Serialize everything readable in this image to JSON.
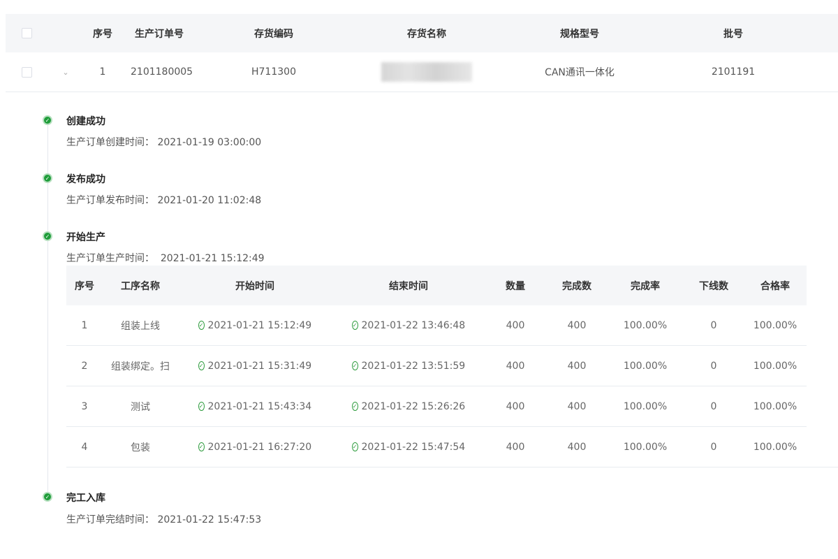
{
  "order_table": {
    "headers": [
      "序号",
      "生产订单号",
      "存货编码",
      "存货名称",
      "规格型号",
      "批号"
    ],
    "row": {
      "index": "1",
      "order_no": "2101180005",
      "inventory_code": "H711300",
      "inventory_name": "",
      "spec": "CAN通讯一体化",
      "batch": "2101191"
    }
  },
  "timeline": [
    {
      "title": "创建成功",
      "detail": "生产订单创建时间： 2021-01-19 03:00:00"
    },
    {
      "title": "发布成功",
      "detail": "生产订单发布时间： 2021-01-20 11:02:48"
    },
    {
      "title": "开始生产",
      "detail": "生产订单生产时间：  2021-01-21 15:12:49"
    },
    {
      "title": "完工入库",
      "detail": "生产订单完结时间： 2021-01-22 15:47:53"
    }
  ],
  "process_table": {
    "headers": [
      "序号",
      "工序名称",
      "开始时间",
      "结束时间",
      "数量",
      "完成数",
      "完成率",
      "下线数",
      "合格率"
    ],
    "rows": [
      [
        "1",
        "组装上线",
        "2021-01-21 15:12:49",
        "2021-01-22 13:46:48",
        "400",
        "400",
        "100.00%",
        "0",
        "100.00%"
      ],
      [
        "2",
        "组装绑定。扫",
        "2021-01-21 15:31:49",
        "2021-01-22 13:51:59",
        "400",
        "400",
        "100.00%",
        "0",
        "100.00%"
      ],
      [
        "3",
        "测试",
        "2021-01-21 15:43:34",
        "2021-01-22 15:26:26",
        "400",
        "400",
        "100.00%",
        "0",
        "100.00%"
      ],
      [
        "4",
        "包装",
        "2021-01-21 16:27:20",
        "2021-01-22 15:47:54",
        "400",
        "400",
        "100.00%",
        "0",
        "100.00%"
      ]
    ]
  },
  "colors": {
    "success": "#1f9d3a",
    "header_bg": "#f5f6f8"
  }
}
